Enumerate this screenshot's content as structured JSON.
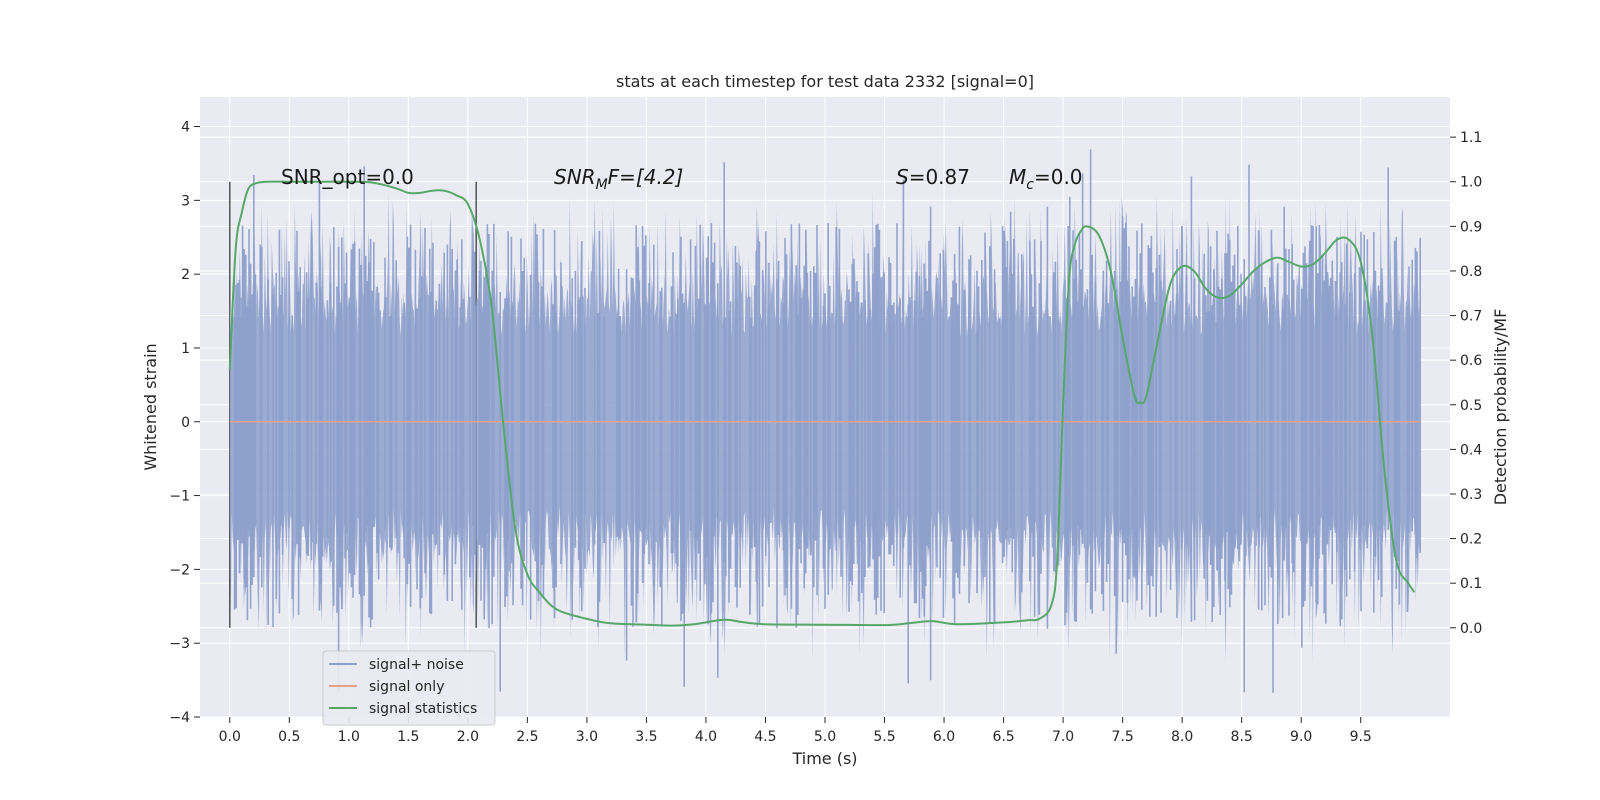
{
  "chart_data": {
    "type": "line",
    "title": "stats at each timestep for test data 2332 [signal=0]",
    "xlabel": "Time (s)",
    "ylabel_left": "Whitened strain",
    "ylabel_right": "Detection probability/MF",
    "xlim": [
      -0.25,
      10.25
    ],
    "ylim_left": [
      -4,
      4.4
    ],
    "ylim_right": [
      -0.2,
      1.19
    ],
    "x_ticks": [
      "0.0",
      "0.5",
      "1.0",
      "1.5",
      "2.0",
      "2.5",
      "3.0",
      "3.5",
      "4.0",
      "4.5",
      "5.0",
      "5.5",
      "6.0",
      "6.5",
      "7.0",
      "7.5",
      "8.0",
      "8.5",
      "9.0",
      "9.5"
    ],
    "y_left_ticks": [
      "4",
      "3",
      "2",
      "1",
      "0",
      "−1",
      "−2",
      "−3",
      "−4"
    ],
    "y_right_ticks": [
      "1.1",
      "1.0",
      "0.9",
      "0.8",
      "0.7",
      "0.6",
      "0.5",
      "0.4",
      "0.3",
      "0.2",
      "0.1",
      "0.0"
    ],
    "grid": true,
    "legend_position": "lower-left",
    "annotations": {
      "snr_opt": "SNR_opt=0.0",
      "snr_mf_base": "SNR",
      "snr_mf_sub": "M",
      "snr_mf_rest": "F=[4.2]",
      "s_symbol": "S",
      "s_value": "=0.87",
      "mc_symbol": "M",
      "mc_sub": "c",
      "mc_value": "=0.0"
    },
    "window_markers_x": [
      0.0,
      2.07
    ],
    "series": [
      {
        "name": "signal+ noise",
        "color": "#8da0cb",
        "style": "dense noise trace, amplitude envelope roughly -3.5 to 4.1 over x 0 to 10",
        "envelope": {
          "x": [
            0,
            10
          ],
          "typical_range": [
            -1.6,
            1.6
          ],
          "extreme_range": [
            -3.6,
            4.05
          ]
        }
      },
      {
        "name": "signal only",
        "color": "#e5a08a",
        "x": [
          0.0,
          10.0
        ],
        "y": [
          0.0,
          0.0
        ]
      },
      {
        "name": "signal statistics",
        "color": "#55a868",
        "axis": "right",
        "x": [
          0.0,
          0.05,
          0.1,
          0.15,
          0.2,
          0.3,
          0.5,
          0.8,
          1.0,
          1.2,
          1.4,
          1.5,
          1.6,
          1.7,
          1.8,
          1.9,
          2.0,
          2.1,
          2.2,
          2.3,
          2.4,
          2.5,
          2.6,
          2.7,
          2.8,
          3.0,
          3.2,
          3.5,
          3.7,
          3.9,
          4.15,
          4.3,
          4.5,
          5.0,
          5.5,
          5.7,
          5.9,
          6.1,
          6.5,
          6.7,
          6.8,
          6.9,
          6.95,
          7.0,
          7.05,
          7.1,
          7.15,
          7.2,
          7.3,
          7.4,
          7.5,
          7.6,
          7.65,
          7.7,
          7.8,
          7.9,
          8.0,
          8.1,
          8.2,
          8.3,
          8.4,
          8.5,
          8.6,
          8.7,
          8.8,
          8.9,
          9.0,
          9.1,
          9.2,
          9.3,
          9.4,
          9.5,
          9.6,
          9.7,
          9.8,
          9.9,
          9.95
        ],
        "y": [
          0.58,
          0.85,
          0.93,
          0.98,
          0.995,
          1.0,
          1.0,
          1.0,
          1.0,
          0.998,
          0.985,
          0.975,
          0.975,
          0.98,
          0.98,
          0.97,
          0.95,
          0.87,
          0.72,
          0.45,
          0.22,
          0.12,
          0.08,
          0.05,
          0.035,
          0.02,
          0.01,
          0.007,
          0.005,
          0.008,
          0.018,
          0.013,
          0.008,
          0.007,
          0.006,
          0.01,
          0.015,
          0.008,
          0.012,
          0.017,
          0.02,
          0.05,
          0.15,
          0.5,
          0.78,
          0.86,
          0.89,
          0.9,
          0.88,
          0.8,
          0.65,
          0.52,
          0.505,
          0.52,
          0.65,
          0.77,
          0.81,
          0.8,
          0.76,
          0.74,
          0.745,
          0.77,
          0.8,
          0.82,
          0.83,
          0.82,
          0.81,
          0.815,
          0.84,
          0.87,
          0.87,
          0.82,
          0.65,
          0.35,
          0.15,
          0.1,
          0.08
        ]
      }
    ]
  }
}
